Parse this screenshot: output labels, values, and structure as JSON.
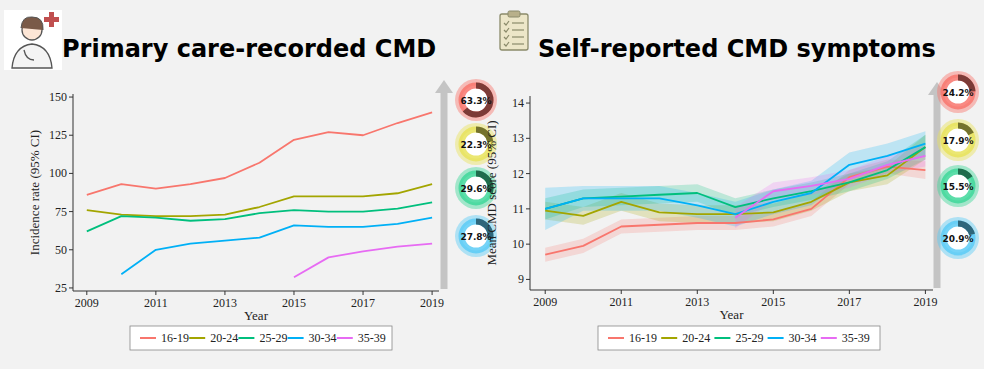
{
  "chart_data": [
    {
      "type": "line",
      "title": "Primary care-recorded CMD",
      "x_label": "Year",
      "y_label": "Incidence rate (95% CI)",
      "x": [
        2009,
        2010,
        2011,
        2012,
        2013,
        2014,
        2015,
        2016,
        2017,
        2018,
        2019
      ],
      "xlim": [
        2008.6,
        2019.2
      ],
      "xticks": [
        2009,
        2011,
        2013,
        2015,
        2017,
        2019
      ],
      "ylim": [
        23,
        152
      ],
      "yticks": [
        25,
        50,
        75,
        100,
        125,
        150
      ],
      "grid": false,
      "legend": "bottom",
      "series": [
        {
          "name": "16-19",
          "color": "#F8766D",
          "values": [
            86,
            93,
            90,
            93,
            97,
            107,
            122,
            127,
            125,
            133,
            140
          ]
        },
        {
          "name": "20-24",
          "color": "#A3A500",
          "values": [
            76,
            73,
            72,
            72,
            73,
            78,
            85,
            85,
            85,
            87,
            93
          ]
        },
        {
          "name": "25-29",
          "color": "#00BF7D",
          "values": [
            62,
            72,
            71,
            69,
            70,
            74,
            76,
            75,
            75,
            77,
            81
          ]
        },
        {
          "name": "30-34",
          "color": "#00B0F6",
          "values": [
            null,
            34,
            50,
            54,
            56,
            58,
            66,
            65,
            65,
            67,
            71
          ]
        },
        {
          "name": "35-39",
          "color": "#E76BF3",
          "values": [
            null,
            null,
            null,
            null,
            null,
            null,
            32,
            45,
            49,
            52,
            54
          ]
        }
      ],
      "percent_change": {
        "values": [
          63.3,
          22.3,
          29.6,
          27.8
        ],
        "value_labels": [
          "63.3%",
          "22.3%",
          "29.6%",
          "27.8%"
        ],
        "colors": [
          "#F8766D",
          "#E8E35A",
          "#3FD79A",
          "#5CCBF6"
        ]
      }
    },
    {
      "type": "line",
      "title": "Self-reported CMD symptoms",
      "x_label": "Year",
      "y_label": "Mean CMD score (95% CI)",
      "x": [
        2009,
        2010,
        2011,
        2012,
        2013,
        2014,
        2015,
        2016,
        2017,
        2018,
        2019
      ],
      "xlim": [
        2008.6,
        2019.2
      ],
      "xticks": [
        2009,
        2011,
        2013,
        2015,
        2017,
        2019
      ],
      "ylim": [
        8.7,
        14.2
      ],
      "yticks": [
        9,
        10,
        11,
        12,
        13,
        14
      ],
      "grid": false,
      "legend": "bottom",
      "series": [
        {
          "name": "16-19",
          "color": "#F8766D",
          "values": [
            9.7,
            9.95,
            10.5,
            10.55,
            10.6,
            10.6,
            10.7,
            11.0,
            11.9,
            12.2,
            12.1
          ],
          "lower": [
            9.5,
            9.75,
            10.3,
            10.35,
            10.4,
            10.4,
            10.5,
            10.8,
            11.7,
            12.0,
            11.85
          ],
          "upper": [
            9.9,
            10.15,
            10.7,
            10.75,
            10.8,
            10.8,
            10.9,
            11.2,
            12.1,
            12.4,
            12.35
          ]
        },
        {
          "name": "20-24",
          "color": "#A3A500",
          "values": [
            10.95,
            10.8,
            11.2,
            10.9,
            10.85,
            10.85,
            10.9,
            11.2,
            11.75,
            11.95,
            12.75
          ],
          "lower": [
            10.7,
            10.55,
            10.95,
            10.65,
            10.6,
            10.6,
            10.65,
            10.95,
            11.5,
            11.7,
            12.4
          ],
          "upper": [
            11.2,
            11.05,
            11.45,
            11.15,
            11.1,
            11.1,
            11.15,
            11.45,
            12.0,
            12.2,
            13.1
          ]
        },
        {
          "name": "25-29",
          "color": "#00BF7D",
          "values": [
            11.0,
            11.3,
            11.35,
            11.4,
            11.45,
            11.05,
            11.3,
            11.5,
            11.75,
            12.1,
            12.75
          ],
          "lower": [
            10.7,
            11.05,
            11.1,
            11.15,
            11.2,
            10.8,
            11.05,
            11.25,
            11.5,
            11.85,
            12.4
          ],
          "upper": [
            11.3,
            11.55,
            11.6,
            11.65,
            11.7,
            11.3,
            11.55,
            11.75,
            12.0,
            12.35,
            13.1
          ]
        },
        {
          "name": "30-34",
          "color": "#00B0F6",
          "values": [
            11.0,
            11.3,
            11.3,
            11.3,
            11.1,
            10.85,
            11.2,
            11.45,
            12.25,
            12.5,
            12.85
          ],
          "lower": [
            10.4,
            10.95,
            10.95,
            10.95,
            10.75,
            10.5,
            10.85,
            11.1,
            11.9,
            12.15,
            12.5
          ],
          "upper": [
            11.6,
            11.65,
            11.65,
            11.65,
            11.45,
            11.2,
            11.55,
            11.8,
            12.6,
            12.85,
            13.2
          ]
        },
        {
          "name": "35-39",
          "color": "#E76BF3",
          "values": [
            null,
            null,
            null,
            null,
            null,
            10.75,
            11.5,
            11.65,
            11.85,
            12.25,
            12.5
          ],
          "lower": [
            null,
            null,
            null,
            null,
            null,
            10.45,
            11.25,
            11.4,
            11.6,
            12.0,
            12.2
          ],
          "upper": [
            null,
            null,
            null,
            null,
            null,
            11.05,
            11.75,
            11.9,
            12.1,
            12.5,
            12.8
          ]
        }
      ],
      "percent_change": {
        "values": [
          24.2,
          17.9,
          15.5,
          20.9
        ],
        "value_labels": [
          "24.2%",
          "17.9%",
          "15.5%",
          "20.9%"
        ],
        "colors": [
          "#F8766D",
          "#E8E35A",
          "#3FD79A",
          "#5CCBF6"
        ]
      }
    }
  ]
}
